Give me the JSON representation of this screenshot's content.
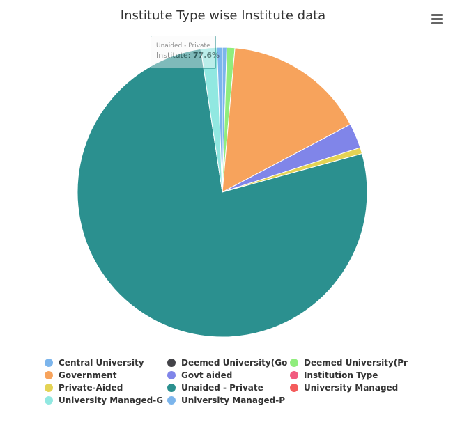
{
  "chart_data": {
    "type": "pie",
    "title": "Institute Type wise Institute data",
    "series_name": "Institute",
    "slices": [
      {
        "name": "Central University",
        "value": 0.5,
        "color": "#7cb5ec"
      },
      {
        "name": "Deemed University(Go",
        "value": 0.0,
        "color": "#434348"
      },
      {
        "name": "Deemed University(Pr",
        "value": 0.9,
        "color": "#90ed7d"
      },
      {
        "name": "Government",
        "value": 16.0,
        "color": "#f7a35c"
      },
      {
        "name": "Govt aided",
        "value": 2.8,
        "color": "#8085e9"
      },
      {
        "name": "Institution Type",
        "value": 0.0,
        "color": "#f15c80"
      },
      {
        "name": "Private-Aided",
        "value": 0.7,
        "color": "#e4d354"
      },
      {
        "name": "Unaided - Private",
        "value": 77.6,
        "color": "#2b908f"
      },
      {
        "name": "University Managed",
        "value": 0.0,
        "color": "#f45b5b"
      },
      {
        "name": "University Managed-G",
        "value": 1.8,
        "color": "#91e8e1"
      },
      {
        "name": "University Managed-P",
        "value": 0.6,
        "color": "#7cb5ec"
      }
    ],
    "legend_position": "bottom",
    "tooltip": {
      "title": "Unaided - Private",
      "label": "Institute:",
      "value": "77.6%"
    }
  },
  "menu": {
    "icon": "hamburger-menu-icon"
  }
}
